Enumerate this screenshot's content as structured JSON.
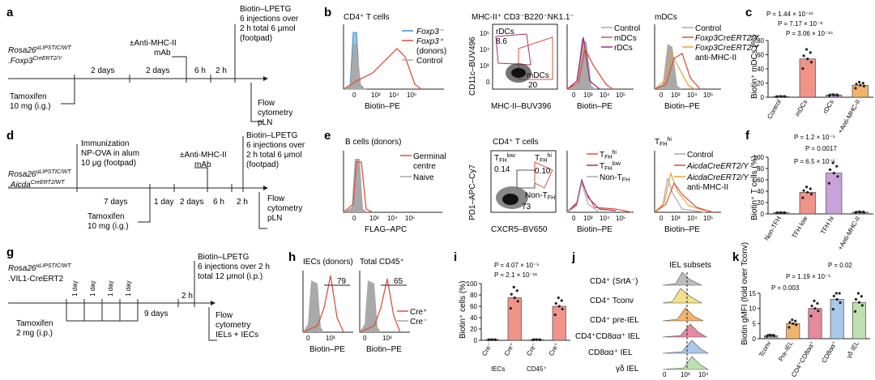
{
  "panels": {
    "a": {
      "letter": "a",
      "line1": "Rosa26",
      "line1_sup": "uLIPSTIC/WT",
      "line2": ".Foxp3",
      "line2_sup": "CreERT2/Y",
      "tam": [
        "Tamoxifen",
        "10 mg (i.g.)"
      ],
      "int1": "2 days",
      "int2": "2 days",
      "int3": "6 h",
      "int4": "2 h",
      "mhc": [
        "±Anti-MHC-II",
        "mAb"
      ],
      "bio": [
        "Biotin–LPETG",
        "6 injections over",
        "2 h total 6 μmol",
        "(footpad)"
      ],
      "flow": [
        "Flow",
        "cytometry",
        "pLN"
      ]
    },
    "b": {
      "letter": "b",
      "p1_title": "CD4⁺ T cells",
      "p1_leg": [
        "Foxp3⁻",
        "Foxp3⁺",
        "(donors)",
        "Control"
      ],
      "p1_x": "Biotin–PE",
      "p2_title": "MHC-II⁺ CD3⁻B220⁻NK1.1⁻",
      "p2_y": "CD11c–BUV496",
      "p2_x": "MHC-II–BUV396",
      "p2_g1": "rDCs",
      "p2_v1": "8.6",
      "p2_g2": "mDCs",
      "p2_v2": "20",
      "p3_leg": [
        "Control",
        "mDCs",
        "rDCs"
      ],
      "p3_x": "Biotin–PE",
      "p4_title": "mDCs",
      "p4_leg": [
        "Control",
        "Foxp3CreERT2/Y",
        "Foxp3CreERT2/Y",
        "anti-MHC-II"
      ],
      "p4_x": "Biotin–PE"
    },
    "c": {
      "letter": "c",
      "ylabel": "Biotin⁺ mDCs (%)",
      "yticks": [
        "0",
        "20",
        "40",
        "60",
        "80"
      ],
      "pvals": [
        "P = 1.44 × 10⁻¹⁶",
        "P = 7.17 × 10⁻⁸",
        "P = 3.06 × 10⁻¹⁶"
      ],
      "cats": [
        "Control",
        "mDCs",
        "rDCs",
        "+Anti-MHC-II"
      ]
    },
    "d": {
      "letter": "d",
      "line1": "Rosa26",
      "line1_sup": "uLIPSTIC/WT",
      "line2": ".Aicda",
      "line2_sup": "CreERT2/WT",
      "imm": [
        "Immunization",
        "NP-OVA in alum",
        "10 μg (footpad)"
      ],
      "int1": "7 days",
      "int2": "1 day",
      "int3": "2 days",
      "int4": "6 h",
      "int5": "2 h",
      "tam": [
        "Tamoxifen",
        "10 mg (i.g.)"
      ],
      "mhc": [
        "±Anti-MHC-II",
        "mAb"
      ],
      "bio": [
        "Biotin–LPETG",
        "6 injections over",
        "2 h total 6 μmol",
        "(footpad)"
      ],
      "flow": [
        "Flow",
        "cytometry",
        "pLN"
      ]
    },
    "e": {
      "letter": "e",
      "p1_title": "B cells (donors)",
      "p1_leg": [
        "Germinal",
        "centre",
        "Naive"
      ],
      "p1_x": "FLAG–APC",
      "p2_title": "CD4⁺ T cells",
      "p2_y": "PD1–APC–Cy7",
      "p2_x": "CXCR5–BV650",
      "g1": "TFH low",
      "v1": "0.14",
      "g2": "TFH hi",
      "v2": "0.10",
      "g3": "Non-TFH",
      "v3": "73",
      "p3_leg": [
        "TFH hi",
        "TFH low",
        "Non-TFH"
      ],
      "p3_x": "Biotin–PE",
      "p4_title": "TFH hi",
      "p4_leg": [
        "Control",
        "AicdaCreERT2/Y",
        "AicdaCreERT2/Y",
        "anti-MHC-II"
      ],
      "p4_x": "Biotin–PE"
    },
    "f": {
      "letter": "f",
      "ylabel": "Biotin⁺ T cells (%)",
      "yticks": [
        "0",
        "20",
        "40",
        "60",
        "80",
        "100"
      ],
      "pvals": [
        "P = 1.2 × 10⁻⁵",
        "P = 0.0017",
        "P = 6.5 × 10⁻⁵"
      ],
      "cats": [
        "Non-TFH",
        "TFH low",
        "TFH hi",
        "+Anti-MHC-II"
      ]
    },
    "g": {
      "letter": "g",
      "line1": "Rosa26",
      "line1_sup": "uLIPSTIC/WT",
      "line2": ".VIL1-CreERT2",
      "days": [
        "1 day",
        "1 day",
        "1 day",
        "1 day"
      ],
      "int5": "9 days",
      "int6": "2 h",
      "tam": [
        "Tamoxifen",
        "2 mg (i.p.)"
      ],
      "bio": [
        "Biotin–LPETG",
        "6 injections over 2 h",
        "total 12 μmol (i.p.)"
      ],
      "flow": [
        "Flow",
        "cytometry",
        "IELs + IECs"
      ]
    },
    "h": {
      "letter": "h",
      "t1": "IECs (donors)",
      "t2": "Total CD45⁺",
      "g1": "79",
      "g2": "65",
      "x": "Biotin–PE",
      "leg": [
        "Cre⁺",
        "Cre⁻"
      ]
    },
    "i": {
      "letter": "i",
      "ylabel": "Biotin⁺ cells (%)",
      "yticks": [
        "0",
        "20",
        "40",
        "60",
        "80",
        "100"
      ],
      "pvals": [
        "P = 4.07 × 10⁻⁵",
        "P = 2.1 × 10⁻¹¹"
      ],
      "cats": [
        "Cre⁻",
        "Cre⁺",
        "Cre⁻",
        "Cre⁺"
      ],
      "groups": [
        "IECs",
        "CD45⁺"
      ]
    },
    "j": {
      "letter": "j",
      "title": "IEL subsets",
      "rows": [
        "CD4⁺ (SrtA⁻)",
        "CD4⁺ Tconv",
        "CD4⁺ pre-IEL",
        "CD4⁺CD8αα⁺ IEL",
        "CD8αα⁺ IEL",
        "γδ IEL"
      ],
      "x": "Biotin–PE"
    },
    "k": {
      "letter": "k",
      "ylabel": "Biotin gMFI (fold over Tconv)",
      "yticks": [
        "0",
        "5",
        "10",
        "15"
      ],
      "pvals": [
        "P = 0.02",
        "P = 1.19 × 10⁻⁵",
        "P = 0.003"
      ],
      "cats": [
        "Tconv",
        "Pre-IEL",
        "CD4⁺CD8αα⁺",
        "CD8αα⁺",
        "γδ IEL"
      ]
    }
  },
  "tick_labels": {
    "hist": [
      "0",
      "10³",
      "10⁴",
      "10⁵"
    ],
    "flow_y": [
      "0",
      "10³",
      "10⁴",
      "10⁵"
    ]
  },
  "colors": {
    "red": "#d9533f",
    "blue": "#3a8fc8",
    "grey": "#a9a9a9",
    "purple": "#a0307a",
    "orange": "#e8a33d",
    "bar_red": "#f0948a",
    "bar_orange": "#f4b36a",
    "bar_pink": "#e58aa0",
    "bar_yellow": "#f2e08a",
    "bar_blue": "#a9c8ea",
    "bar_green": "#bfe0b0",
    "bar_purple": "#c8a2d8"
  },
  "chart_data": [
    {
      "type": "bar",
      "panel": "c",
      "categories": [
        "Control",
        "mDCs",
        "rDCs",
        "+Anti-MHC-II"
      ],
      "values": [
        1,
        54,
        3,
        17
      ],
      "ylim": [
        0,
        80
      ]
    },
    {
      "type": "bar",
      "panel": "f",
      "categories": [
        "Non-TFH",
        "TFH low",
        "TFH hi",
        "+Anti-MHC-II"
      ],
      "values": [
        2,
        38,
        72,
        3
      ],
      "ylim": [
        0,
        100
      ]
    },
    {
      "type": "bar",
      "panel": "i",
      "categories": [
        "Cre⁻",
        "Cre⁺",
        "Cre⁻",
        "Cre⁺"
      ],
      "values": [
        1,
        75,
        1,
        60
      ],
      "ylim": [
        0,
        100
      ]
    },
    {
      "type": "bar",
      "panel": "k",
      "categories": [
        "Tconv",
        "Pre-IEL",
        "CD4⁺CD8αα⁺",
        "CD8αα⁺",
        "γδ IEL"
      ],
      "values": [
        1,
        5,
        10,
        13,
        12
      ],
      "ylim": [
        0,
        15
      ]
    }
  ]
}
